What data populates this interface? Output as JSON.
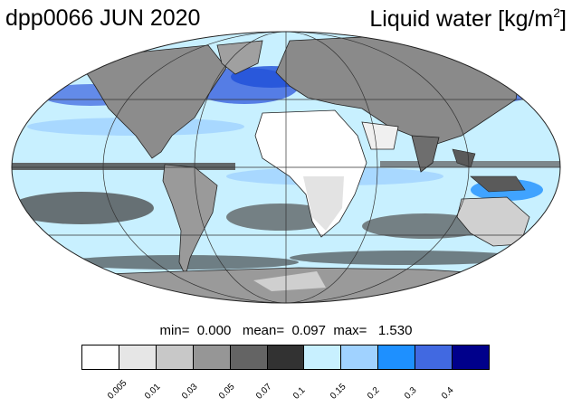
{
  "header": {
    "left_title": "dpp0066 JUN 2020",
    "right_title": "Liquid water  [kg/m",
    "unit_exponent": "2",
    "right_close": "]"
  },
  "map": {
    "projection": "Mollweide global",
    "ocean_color": "#c8f0ff",
    "land_outline_color": "#333333",
    "graticule_color": "#333333"
  },
  "stats": {
    "text": "min=  0.000   mean=  0.097  max=   1.530"
  },
  "colorbar": {
    "colors": [
      "#ffffff",
      "#e6e6e6",
      "#c8c8c8",
      "#969696",
      "#646464",
      "#323232",
      "#c8f0ff",
      "#a0d2ff",
      "#1e90ff",
      "#4169e1",
      "#00008b"
    ],
    "ticks": [
      "0.005",
      "0.01",
      "0.03",
      "0.05",
      "0.07",
      "0.1",
      "0.15",
      "0.2",
      "0.3",
      "0.4"
    ]
  }
}
